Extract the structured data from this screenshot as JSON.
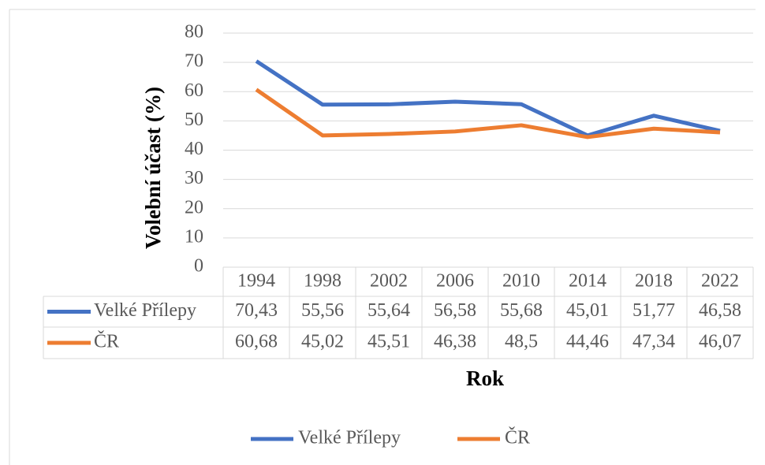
{
  "chart_data": {
    "type": "line",
    "y_label": "Volební účast (%)",
    "x_label": "Rok",
    "categories": [
      "1994",
      "1998",
      "2002",
      "2006",
      "2010",
      "2014",
      "2018",
      "2022"
    ],
    "series": [
      {
        "name": "Velké Přílepy",
        "color": "#4472c4",
        "values": [
          70.43,
          55.56,
          55.64,
          56.58,
          55.68,
          45.01,
          51.77,
          46.58
        ],
        "value_labels": [
          "70,43",
          "55,56",
          "55,64",
          "56,58",
          "55,68",
          "45,01",
          "51,77",
          "46,58"
        ]
      },
      {
        "name": "ČR",
        "color": "#ed7d31",
        "values": [
          60.68,
          45.02,
          45.51,
          46.38,
          48.5,
          44.46,
          47.34,
          46.07
        ],
        "value_labels": [
          "60,68",
          "45,02",
          "45,51",
          "46,38",
          "48,5",
          "44,46",
          "47,34",
          "46,07"
        ]
      }
    ],
    "ylim": [
      0,
      80
    ],
    "yticks": [
      0,
      10,
      20,
      30,
      40,
      50,
      60,
      70,
      80
    ],
    "grid": true,
    "data_table": true,
    "legend": "bottom"
  }
}
